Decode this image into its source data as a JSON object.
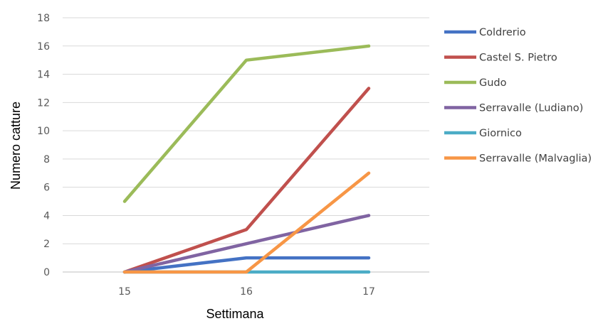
{
  "chart_data": {
    "type": "line",
    "title": "",
    "xlabel": "Settimana",
    "ylabel": "Numero catture",
    "categories": [
      "15",
      "16",
      "17"
    ],
    "ylim": [
      0,
      18
    ],
    "yticks": [
      0,
      2,
      4,
      6,
      8,
      10,
      12,
      14,
      16,
      18
    ],
    "grid": true,
    "legend_position": "right",
    "series": [
      {
        "name": "Coldrerio",
        "color": "#4472C4",
        "values": [
          0,
          1,
          1
        ]
      },
      {
        "name": "Castel S. Pietro",
        "color": "#C0504D",
        "values": [
          0,
          3,
          13
        ]
      },
      {
        "name": "Gudo",
        "color": "#9BBB59",
        "values": [
          5,
          15,
          16
        ]
      },
      {
        "name": "Serravalle (Ludiano)",
        "color": "#8064A2",
        "values": [
          0,
          2,
          4
        ]
      },
      {
        "name": "Giornico",
        "color": "#4BACC6",
        "values": [
          0,
          0,
          0
        ]
      },
      {
        "name": "Serravalle (Malvaglia)",
        "color": "#F79646",
        "values": [
          0,
          0,
          7
        ]
      }
    ]
  }
}
